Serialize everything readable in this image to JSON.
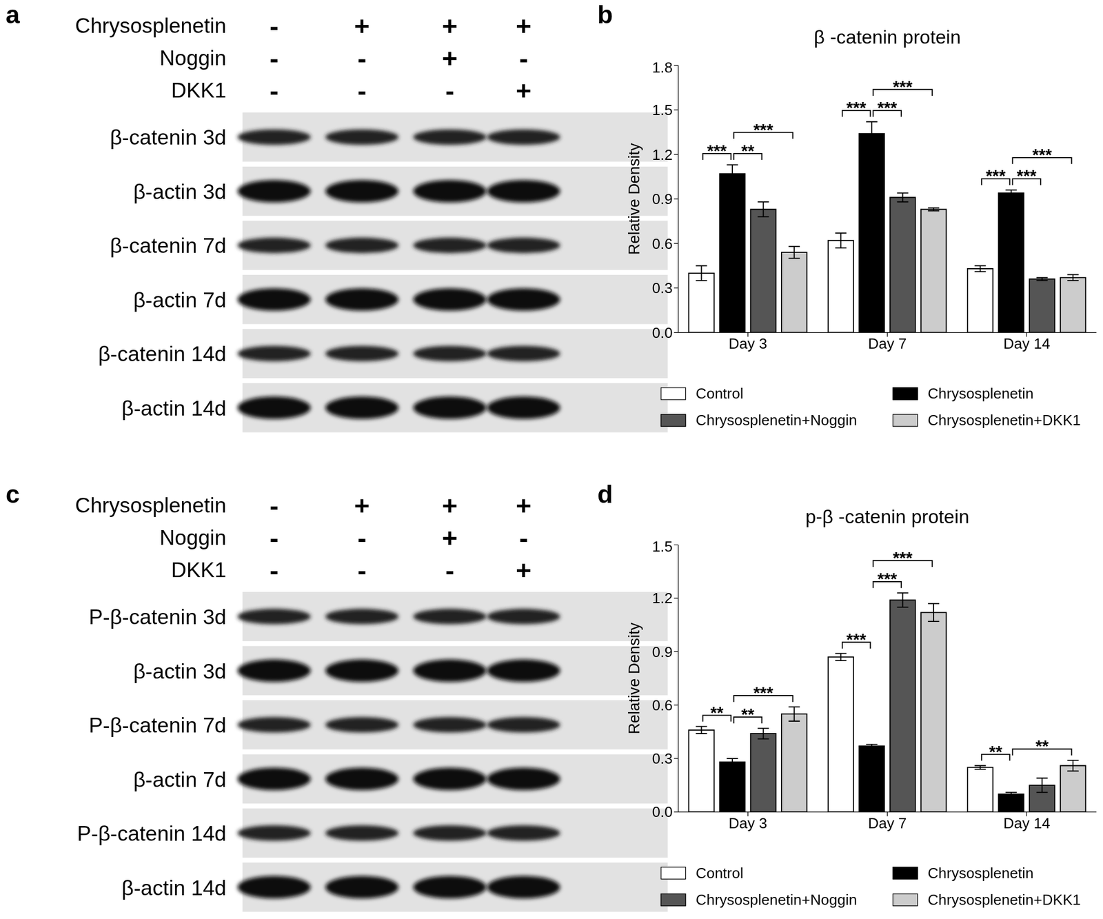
{
  "chart_data": [
    {
      "panel": "b",
      "type": "bar",
      "title": "β -catenin protein",
      "y_label": "Relative Density",
      "categories": [
        "Day 3",
        "Day 7",
        "Day 14"
      ],
      "series": [
        {
          "name": "Control",
          "color": "#ffffff",
          "values": [
            0.4,
            0.62,
            0.43
          ],
          "errors": [
            0.05,
            0.05,
            0.02
          ]
        },
        {
          "name": "Chrysosplenetin",
          "color": "#000000",
          "values": [
            1.07,
            1.34,
            0.94
          ],
          "errors": [
            0.06,
            0.08,
            0.02
          ]
        },
        {
          "name": "Chrysosplenetin+Noggin",
          "color": "#555555",
          "values": [
            0.83,
            0.91,
            0.36
          ],
          "errors": [
            0.05,
            0.03,
            0.01
          ]
        },
        {
          "name": "Chrysosplenetin+DKK1",
          "color": "#cccccc",
          "values": [
            0.54,
            0.83,
            0.37
          ],
          "errors": [
            0.04,
            0.01,
            0.02
          ]
        }
      ],
      "ylim": [
        0,
        1.8
      ],
      "yticks": [
        {
          "value": 0,
          "label": "0.0"
        },
        0.3,
        0.6,
        0.9,
        1.2,
        1.5,
        1.8
      ],
      "legend": "bottom",
      "annotations": [
        {
          "category": "Day 3",
          "from": "Control",
          "to": "Chrysosplenetin",
          "label": "***"
        },
        {
          "category": "Day 3",
          "from": "Chrysosplenetin",
          "to": "Chrysosplenetin+Noggin",
          "label": "**"
        },
        {
          "category": "Day 3",
          "from": "Chrysosplenetin",
          "to": "Chrysosplenetin+DKK1",
          "label": "***"
        },
        {
          "category": "Day 7",
          "from": "Control",
          "to": "Chrysosplenetin",
          "label": "***"
        },
        {
          "category": "Day 7",
          "from": "Chrysosplenetin",
          "to": "Chrysosplenetin+Noggin",
          "label": "***"
        },
        {
          "category": "Day 7",
          "from": "Chrysosplenetin",
          "to": "Chrysosplenetin+DKK1",
          "label": "***"
        },
        {
          "category": "Day 14",
          "from": "Control",
          "to": "Chrysosplenetin",
          "label": "***"
        },
        {
          "category": "Day 14",
          "from": "Chrysosplenetin",
          "to": "Chrysosplenetin+Noggin",
          "label": "***"
        },
        {
          "category": "Day 14",
          "from": "Chrysosplenetin",
          "to": "Chrysosplenetin+DKK1",
          "label": "***"
        }
      ]
    },
    {
      "panel": "d",
      "type": "bar",
      "title": "p-β -catenin protein",
      "y_label": "Relative Density",
      "categories": [
        "Day 3",
        "Day 7",
        "Day 14"
      ],
      "series": [
        {
          "name": "Control",
          "color": "#ffffff",
          "values": [
            0.46,
            0.87,
            0.25
          ],
          "errors": [
            0.02,
            0.02,
            0.01
          ]
        },
        {
          "name": "Chrysosplenetin",
          "color": "#000000",
          "values": [
            0.28,
            0.37,
            0.1
          ],
          "errors": [
            0.02,
            0.01,
            0.01
          ]
        },
        {
          "name": "Chrysosplenetin+Noggin",
          "color": "#555555",
          "values": [
            0.44,
            1.19,
            0.15
          ],
          "errors": [
            0.03,
            0.04,
            0.04
          ]
        },
        {
          "name": "Chrysosplenetin+DKK1",
          "color": "#cccccc",
          "values": [
            0.55,
            1.12,
            0.26
          ],
          "errors": [
            0.04,
            0.05,
            0.03
          ]
        }
      ],
      "ylim": [
        0,
        1.5
      ],
      "yticks": [
        {
          "value": 0,
          "label": "0.0"
        },
        0.3,
        0.6,
        0.9,
        1.2,
        1.5
      ],
      "legend": "bottom",
      "annotations": [
        {
          "category": "Day 3",
          "from": "Control",
          "to": "Chrysosplenetin",
          "label": "**"
        },
        {
          "category": "Day 3",
          "from": "Chrysosplenetin",
          "to": "Chrysosplenetin+Noggin",
          "label": "**"
        },
        {
          "category": "Day 3",
          "from": "Chrysosplenetin",
          "to": "Chrysosplenetin+DKK1",
          "label": "***"
        },
        {
          "category": "Day 7",
          "from": "Control",
          "to": "Chrysosplenetin",
          "label": "***"
        },
        {
          "category": "Day 7",
          "from": "Chrysosplenetin",
          "to": "Chrysosplenetin+Noggin",
          "label": "***"
        },
        {
          "category": "Day 7",
          "from": "Chrysosplenetin",
          "to": "Chrysosplenetin+DKK1",
          "label": "***"
        },
        {
          "category": "Day 14",
          "from": "Control",
          "to": "Chrysosplenetin",
          "label": "**"
        },
        {
          "category": "Day 14",
          "from": "Chrysosplenetin",
          "to": "Chrysosplenetin+DKK1",
          "label": "**"
        }
      ]
    }
  ],
  "blots": [
    {
      "panel": "a",
      "treatments": [
        {
          "name": "Chrysosplenetin",
          "signs": [
            "-",
            "+",
            "+",
            "+"
          ]
        },
        {
          "name": "Noggin",
          "signs": [
            "-",
            "-",
            "+",
            "-"
          ]
        },
        {
          "name": "DKK1",
          "signs": [
            "-",
            "-",
            "-",
            "+"
          ]
        }
      ],
      "rows": [
        "β-catenin 3d",
        "β-actin 3d",
        "β-catenin 7d",
        "β-actin 7d",
        "β-catenin 14d",
        "β-actin 14d"
      ]
    },
    {
      "panel": "c",
      "treatments": [
        {
          "name": "Chrysosplenetin",
          "signs": [
            "-",
            "+",
            "+",
            "+"
          ]
        },
        {
          "name": "Noggin",
          "signs": [
            "-",
            "-",
            "+",
            "-"
          ]
        },
        {
          "name": "DKK1",
          "signs": [
            "-",
            "-",
            "-",
            "+"
          ]
        }
      ],
      "rows": [
        "P-β-catenin 3d",
        "β-actin 3d",
        "P-β-catenin 7d",
        "β-actin 7d",
        "P-β-catenin 14d",
        "β-actin 14d"
      ]
    }
  ]
}
